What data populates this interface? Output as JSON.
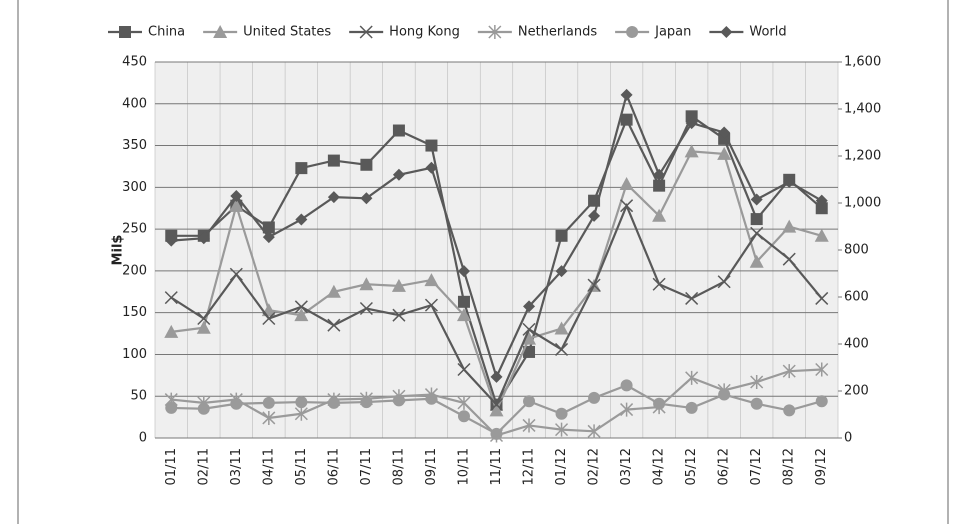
{
  "chart_data": {
    "type": "line",
    "y_label": "Mil$",
    "categories": [
      "01/11",
      "02/11",
      "03/11",
      "04/11",
      "05/11",
      "06/11",
      "07/11",
      "08/11",
      "09/11",
      "10/11",
      "11/11",
      "12/11",
      "01/12",
      "02/12",
      "03/12",
      "04/12",
      "05/12",
      "06/12",
      "07/12",
      "08/12",
      "09/12"
    ],
    "series": [
      {
        "name": "China",
        "color": "#595959",
        "marker": "square",
        "values": [
          242,
          242,
          278,
          252,
          323,
          332,
          327,
          368,
          350,
          163,
          40,
          103,
          242,
          284,
          381,
          302,
          385,
          358,
          262,
          309,
          275
        ]
      },
      {
        "name": "United States",
        "color": "#9a9a9a",
        "marker": "triangle",
        "values": [
          127,
          132,
          278,
          153,
          147,
          175,
          184,
          182,
          189,
          147,
          33,
          119,
          131,
          182,
          304,
          266,
          343,
          340,
          211,
          253,
          242
        ]
      },
      {
        "name": "Hong Kong",
        "color": "#595959",
        "marker": "x",
        "values": [
          168,
          143,
          196,
          143,
          157,
          135,
          155,
          147,
          159,
          82,
          40,
          130,
          106,
          183,
          278,
          184,
          167,
          187,
          245,
          214,
          167
        ]
      },
      {
        "name": "Netherlands",
        "color": "#9a9a9a",
        "marker": "asterisk",
        "values": [
          46,
          42,
          46,
          24,
          29,
          46,
          47,
          50,
          52,
          42,
          3,
          15,
          10,
          8,
          34,
          37,
          72,
          57,
          67,
          80,
          82
        ]
      },
      {
        "name": "Japan",
        "color": "#9a9a9a",
        "marker": "circle",
        "values": [
          36,
          35,
          41,
          42,
          43,
          42,
          43,
          45,
          47,
          26,
          5,
          44,
          29,
          48,
          63,
          41,
          36,
          52,
          41,
          33,
          44
        ]
      },
      {
        "name": "World",
        "color": "#595959",
        "marker": "diamond",
        "axis": "y2",
        "values": [
          840,
          850,
          1030,
          855,
          930,
          1025,
          1020,
          1120,
          1150,
          710,
          260,
          560,
          710,
          945,
          1460,
          1120,
          1340,
          1300,
          1015,
          1090,
          1010
        ]
      }
    ],
    "ylim": [
      0,
      450
    ],
    "yticks": [
      0,
      50,
      100,
      150,
      200,
      250,
      300,
      350,
      400,
      450
    ],
    "y2lim": [
      0,
      1600
    ],
    "y2ticks": [
      0,
      200,
      400,
      600,
      800,
      {
        "value": 1000,
        "label": "1,000"
      },
      {
        "value": 1200,
        "label": "1,200"
      },
      {
        "value": 1400,
        "label": "1,400"
      },
      {
        "value": 1600,
        "label": "1,600"
      }
    ],
    "grid": true,
    "legend": "top"
  }
}
